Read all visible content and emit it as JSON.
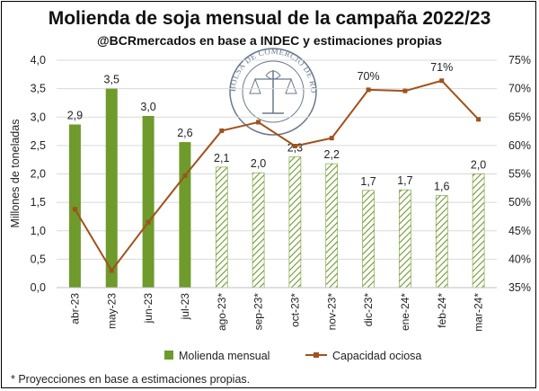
{
  "chart_data": {
    "type": "bar",
    "title": "Molienda de soja mensual de la campaña 2022/23",
    "subtitle": "@BCRmercados en base a INDEC y estimaciones propias",
    "ylabel": "Millones de toneladas",
    "ylim": [
      0,
      4
    ],
    "y_ticks": [
      "0,0",
      "0,5",
      "1,0",
      "1,5",
      "2,0",
      "2,5",
      "3,0",
      "3,5",
      "4,0"
    ],
    "y2lim": [
      35,
      75
    ],
    "y2_ticks": [
      "35%",
      "40%",
      "45%",
      "50%",
      "55%",
      "60%",
      "65%",
      "70%",
      "75%"
    ],
    "categories": [
      "abr-23",
      "may-23",
      "jun-23",
      "jul-23",
      "ago-23*",
      "sep-23*",
      "oct-23*",
      "nov-23*",
      "dic-23*",
      "ene-24*",
      "feb-24*",
      "mar-24*"
    ],
    "series": [
      {
        "name": "Molienda mensual",
        "type": "bar",
        "axis": "left",
        "values": [
          2.87,
          3.5,
          3.02,
          2.56,
          2.12,
          2.02,
          2.3,
          2.18,
          1.71,
          1.72,
          1.62,
          2.0
        ],
        "labels": [
          "2,9",
          "3,5",
          "3,0",
          "2,6",
          "2,1",
          "2,0",
          "2,3",
          "2,2",
          "1,7",
          "1,7",
          "1,6",
          "2,0"
        ],
        "projected": [
          false,
          false,
          false,
          false,
          true,
          true,
          true,
          true,
          true,
          true,
          true,
          true
        ]
      },
      {
        "name": "Capacidad ociosa",
        "type": "line",
        "axis": "right",
        "values": [
          48.8,
          38.0,
          46.5,
          54.7,
          62.6,
          64.1,
          59.9,
          61.3,
          69.8,
          69.6,
          71.4,
          64.6
        ],
        "point_labels": {
          "8": "70%",
          "10": "71%"
        }
      }
    ],
    "legend_position": "bottom",
    "grid": true,
    "colors": {
      "bar": "#6f9a2c",
      "bar_projected_stroke": "#6f9a2c",
      "line": "#a0521c",
      "grid": "#d9d9d9"
    }
  },
  "footnote": "* Proyecciones en base a estimaciones propias.",
  "seal": {
    "text": "BOLSA DE COMERCIO DE ROSARIO",
    "color": "#50627a"
  }
}
